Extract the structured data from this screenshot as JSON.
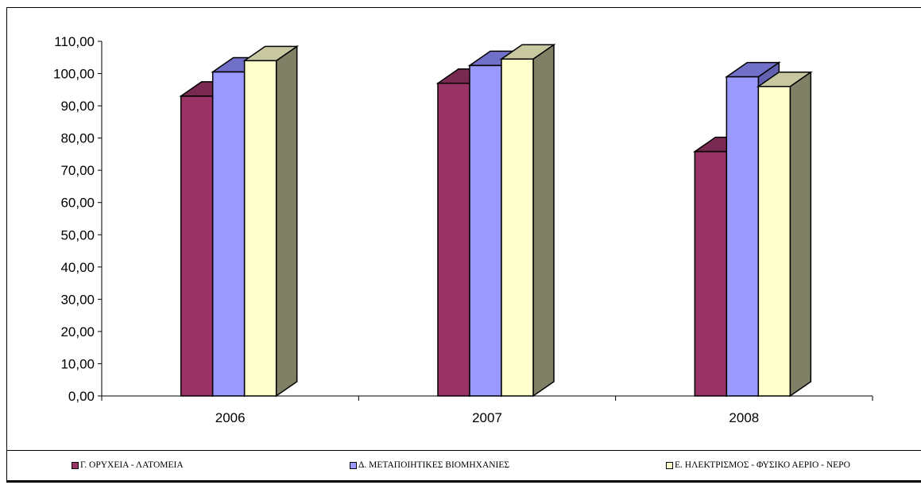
{
  "chart_data": {
    "type": "bar",
    "categories": [
      "2006",
      "2007",
      "2008"
    ],
    "series": [
      {
        "name": "Γ. ΟΡΥΧΕΙΑ - ΛΑΤΟΜΕΙΑ",
        "values": [
          93.0,
          97.0,
          75.8
        ],
        "color": "#993366",
        "top": "#7a2950",
        "side": "#5e1f3e"
      },
      {
        "name": "Δ. ΜΕΤΑΠΟΙΗΤΙΚΕΣ ΒΙΟΜΗΧΑΝΙΕΣ",
        "values": [
          100.5,
          102.5,
          99.0
        ],
        "color": "#9999ff",
        "top": "#7070c8",
        "side": "#6262b0"
      },
      {
        "name": "Ε. ΗΛΕΚΤΡΙΣΜΟΣ - ΦΥΣΙΚΟ ΑΕΡΙΟ - ΝΕΡΟ",
        "values": [
          104.0,
          104.5,
          96.0
        ],
        "color": "#ffffcc",
        "top": "#c8c8a0",
        "side": "#808066"
      }
    ],
    "yticks": [
      "0,00",
      "10,00",
      "20,00",
      "30,00",
      "40,00",
      "50,00",
      "60,00",
      "70,00",
      "80,00",
      "90,00",
      "100,00",
      "110,00"
    ],
    "ylim": [
      0,
      110
    ],
    "legend_position": "bottom",
    "title": "",
    "xlabel": "",
    "ylabel": ""
  }
}
